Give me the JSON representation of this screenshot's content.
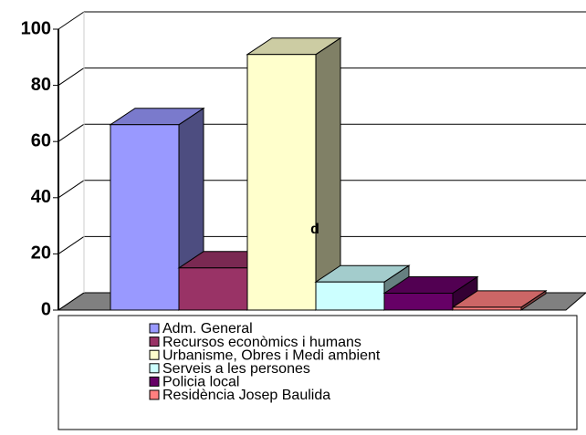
{
  "chart_data": {
    "type": "bar3d",
    "categories": [
      "Adm. General",
      "Recursos econòmics i humans",
      "Urbanisme, Obres i Medi ambient",
      "Serveis a les persones",
      "Policia local",
      "Residència Josep Baulida"
    ],
    "values": [
      66,
      15,
      91,
      10,
      6,
      1
    ],
    "colors": [
      "#9999ff",
      "#993366",
      "#ffffcc",
      "#ccffff",
      "#660066",
      "#ff8080"
    ],
    "annotation": "d",
    "ylim": [
      0,
      100
    ],
    "yticks": [
      0,
      20,
      40,
      60,
      80,
      100
    ],
    "grid": true,
    "legend": "bottom"
  }
}
